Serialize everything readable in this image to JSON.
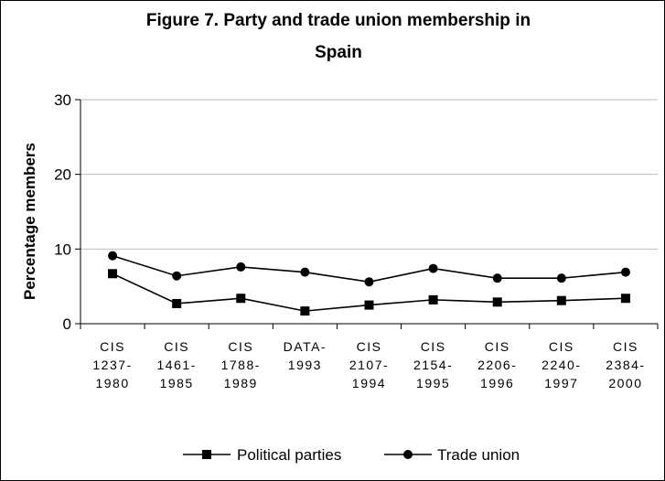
{
  "chart_data": {
    "type": "line",
    "title": "Figure 7. Party and trade union membership in Spain",
    "title_lines": [
      "Figure 7. Party and trade union membership in",
      "Spain"
    ],
    "xlabel": "",
    "ylabel": "Percentage members",
    "ylim": [
      0,
      30
    ],
    "yticks": [
      "0",
      "10",
      "20",
      "30"
    ],
    "grid": "horizontal major gridlines",
    "legend_position": "bottom",
    "categories": [
      "CIS 1237-1980",
      "CIS 1461-1985",
      "CIS 1788-1989",
      "DATA-1993",
      "CIS 2107-1994",
      "CIS 2154-1995",
      "CIS 2206-1996",
      "CIS 2240-1997",
      "CIS 2384-2000"
    ],
    "category_lines": [
      [
        "CIS",
        "1237-",
        "1980"
      ],
      [
        "CIS",
        "1461-",
        "1985"
      ],
      [
        "CIS",
        "1788-",
        "1989"
      ],
      [
        "DATA-",
        "1993"
      ],
      [
        "CIS",
        "2107-",
        "1994"
      ],
      [
        "CIS",
        "2154-",
        "1995"
      ],
      [
        "CIS",
        "2206-",
        "1996"
      ],
      [
        "CIS",
        "2240-",
        "1997"
      ],
      [
        "CIS",
        "2384-",
        "2000"
      ]
    ],
    "series": [
      {
        "name": "Political parties",
        "marker": "square",
        "color": "#000000",
        "values": [
          6.7,
          2.7,
          3.4,
          1.7,
          2.5,
          3.2,
          2.9,
          3.1,
          3.4
        ]
      },
      {
        "name": "Trade union",
        "marker": "circle",
        "color": "#000000",
        "values": [
          9.1,
          6.4,
          7.6,
          6.9,
          5.6,
          7.4,
          6.1,
          6.1,
          6.9
        ]
      }
    ]
  }
}
